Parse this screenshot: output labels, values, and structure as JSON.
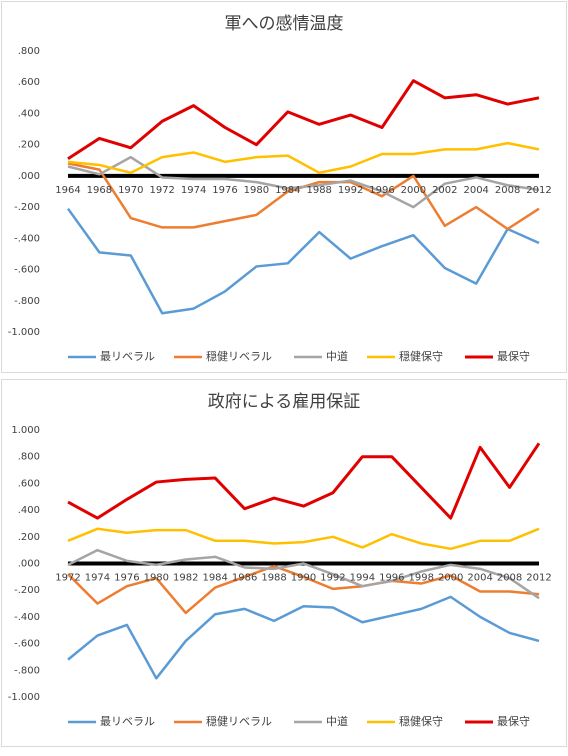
{
  "chart_data": [
    {
      "type": "line",
      "title": "軍への感情温度",
      "categories": [
        "1964",
        "1968",
        "1970",
        "1972",
        "1974",
        "1976",
        "1980",
        "1984",
        "1988",
        "1992",
        "1996",
        "2000",
        "2002",
        "2004",
        "2008",
        "2012"
      ],
      "ylim": [
        -1,
        0.8
      ],
      "yticks": [
        {
          "value": 0.8,
          "label": ".800"
        },
        {
          "value": 0.6,
          "label": ".600"
        },
        {
          "value": 0.4,
          "label": ".400"
        },
        {
          "value": 0.2,
          "label": ".200"
        },
        {
          "value": 0,
          "label": ".000"
        },
        {
          "value": -0.2,
          "label": "-.200"
        },
        {
          "value": -0.4,
          "label": "-.400"
        },
        {
          "value": -0.6,
          "label": "-.600"
        },
        {
          "value": -0.8,
          "label": "-.800"
        },
        {
          "value": -1,
          "label": "-1.000"
        }
      ],
      "legend": "bottom",
      "series": [
        {
          "name": "最リベラル",
          "color": "#5b9bd5",
          "values": [
            -0.21,
            -0.49,
            -0.51,
            -0.88,
            -0.85,
            -0.74,
            -0.58,
            -0.56,
            -0.36,
            -0.53,
            -0.45,
            -0.38,
            -0.59,
            -0.69,
            -0.34,
            -0.43
          ]
        },
        {
          "name": "穏健リベラル",
          "color": "#ed7d31",
          "values": [
            0.08,
            0.04,
            -0.27,
            -0.33,
            -0.33,
            -0.29,
            -0.25,
            -0.1,
            -0.04,
            -0.04,
            -0.13,
            0,
            -0.32,
            -0.2,
            -0.34,
            -0.21
          ]
        },
        {
          "name": "中道",
          "color": "#a5a5a5",
          "values": [
            0.06,
            0.01,
            0.12,
            -0.01,
            -0.02,
            -0.02,
            -0.04,
            -0.08,
            -0.06,
            -0.03,
            -0.1,
            -0.2,
            -0.05,
            -0.01,
            -0.06,
            -0.09
          ]
        },
        {
          "name": "穏健保守",
          "color": "#ffc000",
          "values": [
            0.09,
            0.07,
            0.02,
            0.12,
            0.15,
            0.09,
            0.12,
            0.13,
            0.02,
            0.06,
            0.14,
            0.14,
            0.17,
            0.17,
            0.21,
            0.17
          ]
        },
        {
          "name": "最保守",
          "color": "#e00000",
          "values": [
            0.11,
            0.24,
            0.18,
            0.35,
            0.45,
            0.31,
            0.2,
            0.41,
            0.33,
            0.39,
            0.31,
            0.61,
            0.5,
            0.52,
            0.46,
            0.5
          ]
        }
      ]
    },
    {
      "type": "line",
      "title": "政府による雇用保証",
      "categories": [
        "1972",
        "1974",
        "1976",
        "1980",
        "1982",
        "1984",
        "1986",
        "1988",
        "1990",
        "1992",
        "1994",
        "1996",
        "1998",
        "2000",
        "2004",
        "2008",
        "2012"
      ],
      "ylim": [
        -1,
        1
      ],
      "yticks": [
        {
          "value": 1,
          "label": "1.000"
        },
        {
          "value": 0.8,
          "label": ".800"
        },
        {
          "value": 0.6,
          "label": ".600"
        },
        {
          "value": 0.4,
          "label": ".400"
        },
        {
          "value": 0.2,
          "label": ".200"
        },
        {
          "value": 0,
          "label": ".000"
        },
        {
          "value": -0.2,
          "label": "-.200"
        },
        {
          "value": -0.4,
          "label": "-.400"
        },
        {
          "value": -0.6,
          "label": "-.600"
        },
        {
          "value": -0.8,
          "label": "-.800"
        },
        {
          "value": -1,
          "label": "-1.000"
        }
      ],
      "legend": "bottom",
      "series": [
        {
          "name": "最リベラル",
          "color": "#5b9bd5",
          "values": [
            -0.72,
            -0.54,
            -0.46,
            -0.86,
            -0.58,
            -0.38,
            -0.34,
            -0.43,
            -0.32,
            -0.33,
            -0.44,
            -0.39,
            -0.34,
            -0.25,
            -0.4,
            -0.52,
            -0.58
          ]
        },
        {
          "name": "穏健リベラル",
          "color": "#ed7d31",
          "values": [
            -0.08,
            -0.3,
            -0.17,
            -0.11,
            -0.37,
            -0.18,
            -0.1,
            -0.02,
            -0.1,
            -0.19,
            -0.17,
            -0.13,
            -0.15,
            -0.09,
            -0.21,
            -0.21,
            -0.23
          ]
        },
        {
          "name": "中道",
          "color": "#a5a5a5",
          "values": [
            -0.01,
            0.1,
            0.02,
            -0.01,
            0.03,
            0.05,
            -0.03,
            -0.04,
            0,
            -0.08,
            -0.17,
            -0.13,
            -0.06,
            -0.01,
            -0.04,
            -0.11,
            -0.26
          ]
        },
        {
          "name": "穏健保守",
          "color": "#ffc000",
          "values": [
            0.17,
            0.26,
            0.23,
            0.25,
            0.25,
            0.17,
            0.17,
            0.15,
            0.16,
            0.2,
            0.12,
            0.22,
            0.15,
            0.11,
            0.17,
            0.17,
            0.26
          ]
        },
        {
          "name": "最保守",
          "color": "#e00000",
          "values": [
            0.46,
            0.34,
            0.48,
            0.61,
            0.63,
            0.64,
            0.41,
            0.49,
            0.43,
            0.53,
            0.8,
            0.8,
            0.57,
            0.34,
            0.87,
            0.57,
            0.9
          ]
        }
      ]
    }
  ]
}
